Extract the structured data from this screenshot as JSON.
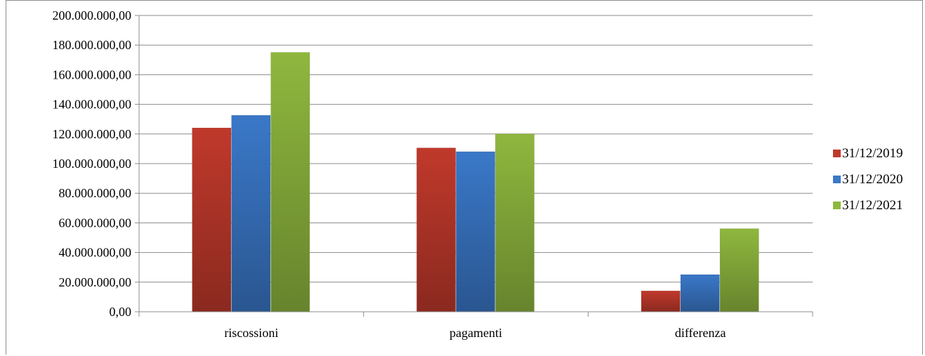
{
  "chart_data": {
    "type": "bar",
    "categories": [
      "riscossioni",
      "pagamenti",
      "differenza"
    ],
    "series": [
      {
        "name": "31/12/2019",
        "values": [
          124000000,
          110500000,
          14000000
        ],
        "color": "#c0392b"
      },
      {
        "name": "31/12/2020",
        "values": [
          132500000,
          108000000,
          25000000
        ],
        "color": "#3a78c8"
      },
      {
        "name": "31/12/2021",
        "values": [
          175000000,
          120000000,
          56000000
        ],
        "color": "#8fb73e"
      }
    ],
    "ylim": [
      0,
      200000000
    ],
    "yticks": [
      0,
      20000000,
      40000000,
      60000000,
      80000000,
      100000000,
      120000000,
      140000000,
      160000000,
      180000000,
      200000000
    ],
    "ytick_labels": [
      "0,00",
      "20.000.000,00",
      "40.000.000,00",
      "60.000.000,00",
      "80.000.000,00",
      "100.000.000,00",
      "120.000.000,00",
      "140.000.000,00",
      "160.000.000,00",
      "180.000.000,00",
      "200.000.000,00"
    ],
    "grid": true,
    "legend_position": "right"
  }
}
